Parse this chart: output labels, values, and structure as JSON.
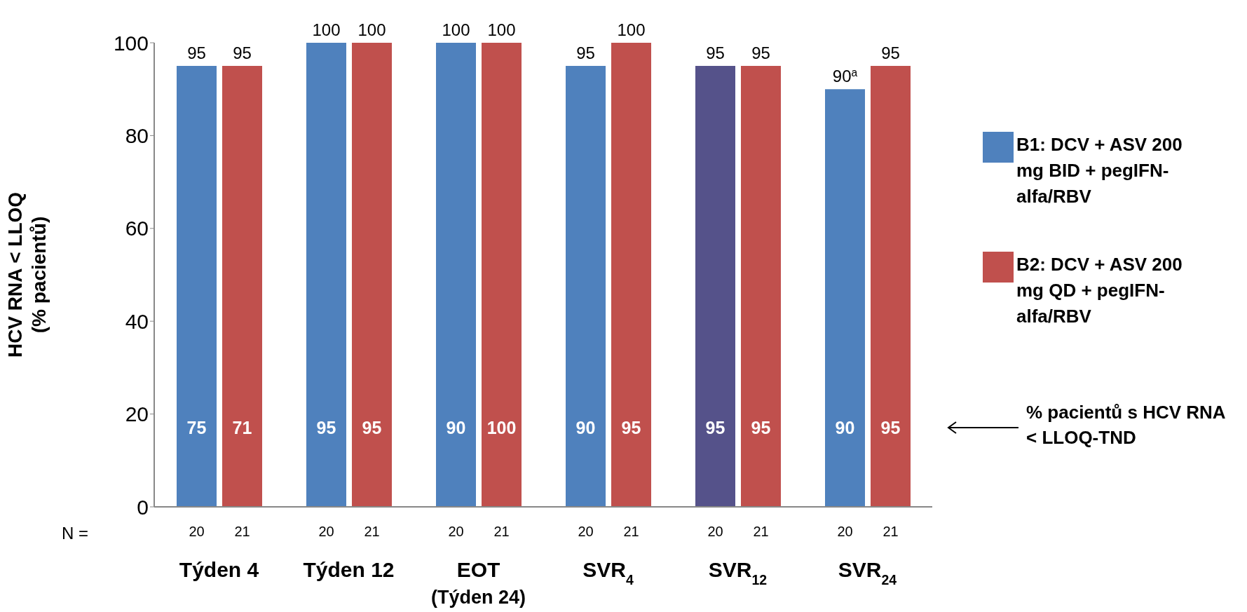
{
  "chart_data": {
    "type": "bar",
    "ylabel": "HCV RNA < LLOQ\n(% pacientů)",
    "categories": [
      "Týden 4",
      "Týden 12",
      "EOT\n(Týden 24)",
      "SVR$_{4}$",
      "SVR$_{12}$",
      "SVR$_{24}$"
    ],
    "series": [
      {
        "name": "B1: DCV + ASV 200 mg BID + pegIFN-alfa/RBV",
        "color": "#4f81bd",
        "colors": [
          "#4f81bd",
          "#4f81bd",
          "#4f81bd",
          "#4f81bd",
          "#55528a",
          "#4f81bd"
        ],
        "values": [
          95,
          100,
          100,
          95,
          95,
          90
        ],
        "value_labels": [
          "95",
          "100",
          "100",
          "95",
          "95",
          "90$^{a}$"
        ]
      },
      {
        "name": "B2: DCV + ASV 200 mg QD + pegIFN-alfa/RBV",
        "color": "#c0504d",
        "values": [
          95,
          100,
          100,
          100,
          95,
          95
        ],
        "value_labels": [
          "95",
          "100",
          "100",
          "100",
          "95",
          "95"
        ]
      }
    ],
    "ylim": [
      0,
      100
    ],
    "yticks": [
      0,
      20,
      40,
      60,
      80,
      100
    ],
    "grid": false,
    "legend": "right",
    "annotations": [
      "N =",
      "% pacientů s HCV RNA < LLOQ-TND",
      "20",
      "21",
      "20",
      "21",
      "20",
      "21",
      "20",
      "21",
      "20",
      "21",
      "20",
      "21",
      {
        "text": "75",
        "x": "Týden 4",
        "y": 17
      },
      {
        "text": "71",
        "x": "Týden 4",
        "y": 17
      },
      {
        "text": "95",
        "x": "Týden 12",
        "y": 17
      },
      {
        "text": "95",
        "x": "Týden 12",
        "y": 17
      },
      {
        "text": "90",
        "x": "EOT\n(Týden 24)",
        "y": 17
      },
      {
        "text": "100",
        "x": "EOT\n(Týden 24)",
        "y": 17
      },
      {
        "text": "90",
        "x": "SVR$_{4}$",
        "y": 17
      },
      {
        "text": "95",
        "x": "SVR$_{4}$",
        "y": 17
      },
      {
        "text": "95",
        "x": "SVR$_{12}$",
        "y": 17
      },
      {
        "text": "95",
        "x": "SVR$_{12}$",
        "y": 17
      },
      {
        "text": "90",
        "x": "SVR$_{24}$",
        "y": 17
      },
      {
        "text": "95",
        "x": "SVR$_{24}$",
        "y": 17
      }
    ]
  }
}
